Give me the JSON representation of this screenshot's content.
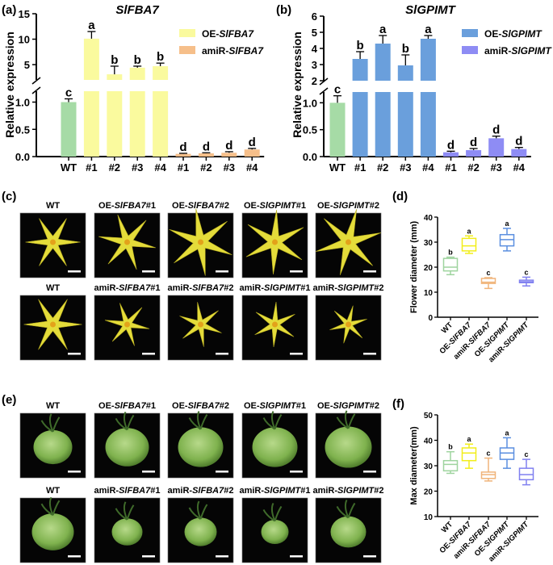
{
  "panels": {
    "a": "(a)",
    "b": "(b)",
    "c": "(c)",
    "d": "(d)",
    "e": "(e)",
    "f": "(f)"
  },
  "colors": {
    "WT": "#a6dba6",
    "OE-SlFBA7": "#fafa9e",
    "amiR-SlFBA7": "#f6bf8a",
    "OE-SlGPIMT": "#6a9fdc",
    "amiR-SlGPIMT": "#8e8cf4",
    "box_WT": "#9fd49f",
    "box_OE-SlFBA7": "#f2ee1a",
    "box_amiR-SlFBA7": "#f0b47a",
    "box_OE-SlGPIMT": "#5b8fe0",
    "box_amiR-SlGPIMT": "#8080f0"
  },
  "photos": {
    "c": {
      "row1": [
        {
          "pre": "WT",
          "it": "",
          "suf": ""
        },
        {
          "pre": "OE-",
          "it": "SlFBA7",
          "suf": "#1"
        },
        {
          "pre": "OE-",
          "it": "SlFBA7",
          "suf": "#2"
        },
        {
          "pre": "OE-",
          "it": "SlGPIMT",
          "suf": "#1"
        },
        {
          "pre": "OE-",
          "it": "SlGPIMT",
          "suf": "#2"
        }
      ],
      "row2": [
        {
          "pre": "WT",
          "it": "",
          "suf": ""
        },
        {
          "pre": "amiR-",
          "it": "SlFBA7",
          "suf": "#1"
        },
        {
          "pre": "amiR-",
          "it": "SlFBA7",
          "suf": "#2"
        },
        {
          "pre": "amiR-",
          "it": "SlGPIMT",
          "suf": "#1"
        },
        {
          "pre": "amiR-",
          "it": "SlGPIMT",
          "suf": "#2"
        }
      ]
    },
    "e": {
      "row1": [
        {
          "pre": "WT",
          "it": "",
          "suf": ""
        },
        {
          "pre": "OE-",
          "it": "SlFBA7",
          "suf": "#1"
        },
        {
          "pre": "OE-",
          "it": "SlFBA7",
          "suf": "#2"
        },
        {
          "pre": "OE-",
          "it": "SlGPIMT",
          "suf": "#1"
        },
        {
          "pre": "OE-",
          "it": "SlGPIMT",
          "suf": "#2"
        }
      ],
      "row2": [
        {
          "pre": "WT",
          "it": "",
          "suf": ""
        },
        {
          "pre": "amiR-",
          "it": "SlFBA7",
          "suf": "#1"
        },
        {
          "pre": "amiR-",
          "it": "SlFBA7",
          "suf": "#2"
        },
        {
          "pre": "amiR-",
          "it": "SlGPIMT",
          "suf": "#1"
        },
        {
          "pre": "amiR-",
          "it": "SlGPIMT",
          "suf": "#2"
        }
      ]
    }
  },
  "chart_data": [
    {
      "type": "bar",
      "title": "SlFBA7",
      "ylabel": "Relative expression",
      "categories": [
        "WT",
        "#1",
        "#2",
        "#3",
        "#4",
        "#1",
        "#2",
        "#3",
        "#4"
      ],
      "groups": [
        "WT",
        "OE-SlFBA7",
        "OE-SlFBA7",
        "OE-SlFBA7",
        "OE-SlFBA7",
        "amiR-SlFBA7",
        "amiR-SlFBA7",
        "amiR-SlFBA7",
        "amiR-SlFBA7"
      ],
      "values": [
        1.0,
        10.1,
        3.1,
        4.4,
        4.7,
        0.05,
        0.06,
        0.07,
        0.13
      ],
      "errors": [
        0.06,
        1.4,
        1.6,
        0.3,
        0.6,
        0.01,
        0.01,
        0.02,
        0.02
      ],
      "sig_letters": [
        "c",
        "a",
        "b",
        "b",
        "b",
        "d",
        "d",
        "d",
        "d"
      ],
      "legend": [
        {
          "pre": "OE-",
          "it": "SlFBA7",
          "group": "OE-SlFBA7"
        },
        {
          "pre": "amiR-",
          "it": "SlFBA7",
          "group": "amiR-SlFBA7"
        }
      ],
      "legend_placement": "top-right",
      "y_break": [
        1.2,
        2
      ],
      "yticks": [
        "0.0",
        "0.5",
        "1.0",
        "5",
        "10",
        "15"
      ],
      "ylim": [
        0,
        15
      ]
    },
    {
      "type": "bar",
      "title": "SlGPIMT",
      "ylabel": "Relative expression",
      "categories": [
        "WT",
        "#1",
        "#2",
        "#3",
        "#4",
        "#1",
        "#2",
        "#3",
        "#4"
      ],
      "groups": [
        "WT",
        "OE-SlGPIMT",
        "OE-SlGPIMT",
        "OE-SlGPIMT",
        "OE-SlGPIMT",
        "amiR-SlGPIMT",
        "amiR-SlGPIMT",
        "amiR-SlGPIMT",
        "amiR-SlGPIMT"
      ],
      "values": [
        1.0,
        3.35,
        4.3,
        2.95,
        4.6,
        0.08,
        0.12,
        0.34,
        0.14
      ],
      "errors": [
        0.13,
        0.45,
        0.5,
        0.65,
        0.2,
        0.02,
        0.03,
        0.04,
        0.03
      ],
      "sig_letters": [
        "c",
        "b",
        "a",
        "b",
        "a",
        "d",
        "d",
        "d",
        "d"
      ],
      "legend": [
        {
          "pre": "OE-",
          "it": "SlGPIMT",
          "group": "OE-SlGPIMT"
        },
        {
          "pre": "amiR-",
          "it": "SlGPIMT",
          "group": "amiR-SlGPIMT"
        }
      ],
      "legend_placement": "top-right",
      "y_break": [
        1.2,
        2
      ],
      "yticks": [
        "0.0",
        "0.5",
        "1.0",
        "2",
        "3",
        "4",
        "5",
        "6"
      ],
      "ylim": [
        0,
        6
      ]
    },
    {
      "type": "box",
      "ylabel": "Flower diameter (mm)",
      "categories": [
        {
          "pre": "WT",
          "it": "",
          "group": "WT"
        },
        {
          "pre": "OE-",
          "it": "SlFBA7",
          "group": "OE-SlFBA7"
        },
        {
          "pre": "amiR-",
          "it": "SlFBA7",
          "group": "amiR-SlFBA7"
        },
        {
          "pre": "OE-",
          "it": "SlGPIMT",
          "group": "OE-SlGPIMT"
        },
        {
          "pre": "amiR-",
          "it": "SlGPIMT",
          "group": "amiR-SlGPIMT"
        }
      ],
      "stats": [
        [
          17,
          18.5,
          20,
          23.5,
          24
        ],
        [
          25.5,
          26.5,
          28.5,
          31.5,
          32.5
        ],
        [
          11.5,
          13.5,
          14,
          15.5,
          15.8
        ],
        [
          26.5,
          28.5,
          31,
          33,
          35.5
        ],
        [
          12.5,
          13.8,
          14.2,
          14.8,
          16
        ]
      ],
      "stats_order": "min,q1,median,q3,max",
      "sig_letters": [
        "b",
        "a",
        "c",
        "a",
        "c"
      ],
      "yticks": [
        "0",
        "10",
        "20",
        "30",
        "40"
      ],
      "ylim": [
        0,
        40
      ]
    },
    {
      "type": "box",
      "ylabel": "Max diameter(mm)",
      "categories": [
        {
          "pre": "WT",
          "it": "",
          "group": "WT"
        },
        {
          "pre": "OE-",
          "it": "SlFBA7",
          "group": "OE-SlFBA7"
        },
        {
          "pre": "amiR-",
          "it": "SlFBA7",
          "group": "amiR-SlFBA7"
        },
        {
          "pre": "OE-",
          "it": "SlGPIMT",
          "group": "OE-SlGPIMT"
        },
        {
          "pre": "amiR-",
          "it": "SlGPIMT",
          "group": "amiR-SlGPIMT"
        }
      ],
      "stats": [
        [
          27,
          28,
          30.5,
          32,
          35.5
        ],
        [
          29,
          32,
          35,
          37,
          38.5
        ],
        [
          24,
          25,
          26.5,
          27.5,
          33
        ],
        [
          29,
          32.5,
          35,
          37,
          41
        ],
        [
          22.5,
          24.5,
          26.5,
          29,
          32.5
        ]
      ],
      "stats_order": "min,q1,median,q3,max",
      "sig_letters": [
        "b",
        "a",
        "c",
        "a",
        "c"
      ],
      "yticks": [
        "10",
        "20",
        "30",
        "40",
        "50"
      ],
      "ylim": [
        10,
        50
      ]
    }
  ]
}
